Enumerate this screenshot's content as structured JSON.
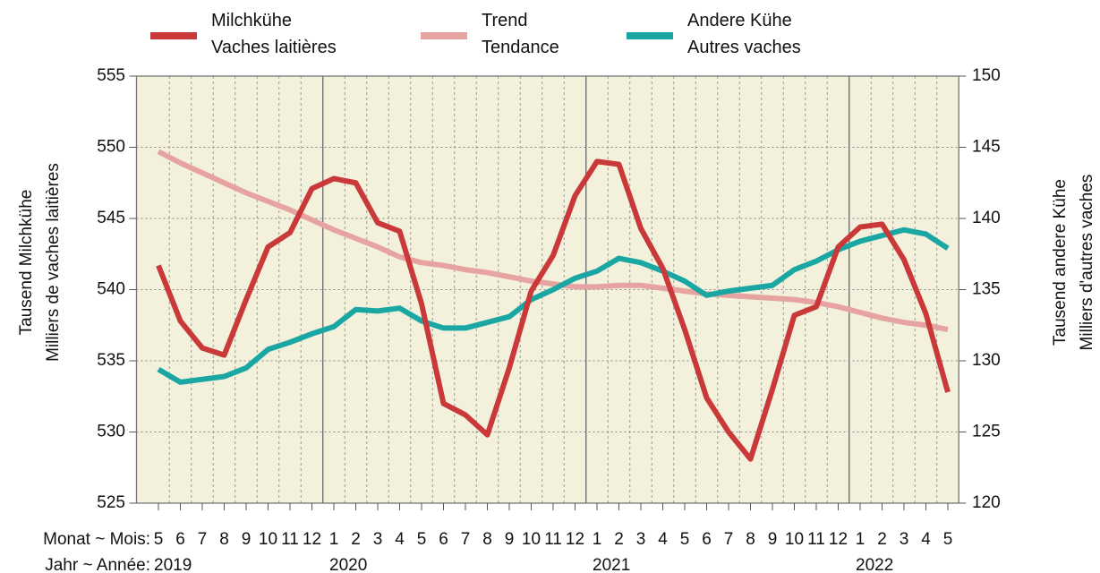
{
  "chart_data": {
    "type": "line",
    "categories": [
      "5",
      "6",
      "7",
      "8",
      "9",
      "10",
      "11",
      "12",
      "1",
      "2",
      "3",
      "4",
      "5",
      "6",
      "7",
      "8",
      "9",
      "10",
      "11",
      "12",
      "1",
      "2",
      "3",
      "4",
      "5",
      "6",
      "7",
      "8",
      "9",
      "10",
      "11",
      "12",
      "1",
      "2",
      "3",
      "4",
      "5"
    ],
    "years": [
      "2019",
      "2020",
      "2021",
      "2022"
    ],
    "xlabel": "Monat ~ Mois:",
    "xlabel2": "Jahr ~ Année:",
    "ylabel": "Tausend Milchkühe\nMilliers de vaches laitières",
    "y2label": "Tausend andere Kühe\nMilliers d'autres vaches",
    "ylim": [
      525,
      555
    ],
    "yticks": [
      525,
      530,
      535,
      540,
      545,
      550,
      555
    ],
    "y2lim": [
      120,
      150
    ],
    "y2ticks": [
      120,
      125,
      130,
      135,
      140,
      145,
      150
    ],
    "grid": true,
    "legend": "top",
    "series": [
      {
        "name": "Milchkühe\nVaches laitières",
        "color": "#c9393a",
        "values": [
          541.7,
          537.8,
          535.9,
          535.4,
          539.3,
          543.0,
          544.0,
          547.1,
          547.8,
          547.5,
          544.7,
          544.1,
          539.0,
          532.0,
          531.2,
          529.8,
          534.5,
          539.9,
          542.4,
          546.6,
          549.0,
          548.8,
          544.3,
          541.5,
          537.2,
          532.4,
          530.0,
          528.1,
          533.0,
          538.2,
          538.8,
          543.0,
          544.4,
          544.6,
          542.1,
          538.3,
          532.8
        ]
      },
      {
        "name": "Trend\nTendance",
        "color": "#e6a3a1",
        "values": [
          549.7,
          548.9,
          548.2,
          547.5,
          546.8,
          546.2,
          545.6,
          544.9,
          544.2,
          543.6,
          543.0,
          542.3,
          541.9,
          541.7,
          541.4,
          541.2,
          540.9,
          540.6,
          540.4,
          540.2,
          540.2,
          540.3,
          540.3,
          540.1,
          539.9,
          539.7,
          539.6,
          539.5,
          539.4,
          539.3,
          539.1,
          538.8,
          538.4,
          538.0,
          537.7,
          537.5,
          537.2
        ]
      },
      {
        "name": "Andere Kühe\nAutres vaches",
        "color": "#1aa7a4",
        "axis": "y2",
        "values": [
          129.4,
          128.5,
          128.7,
          128.9,
          129.5,
          130.8,
          131.3,
          131.9,
          132.4,
          133.6,
          133.5,
          133.7,
          132.8,
          132.3,
          132.3,
          132.7,
          133.1,
          134.3,
          135.0,
          135.8,
          136.3,
          137.2,
          136.9,
          136.3,
          135.6,
          134.6,
          134.9,
          135.1,
          135.3,
          136.4,
          137.0,
          137.8,
          138.4,
          138.8,
          139.2,
          138.9,
          137.9
        ]
      }
    ]
  }
}
